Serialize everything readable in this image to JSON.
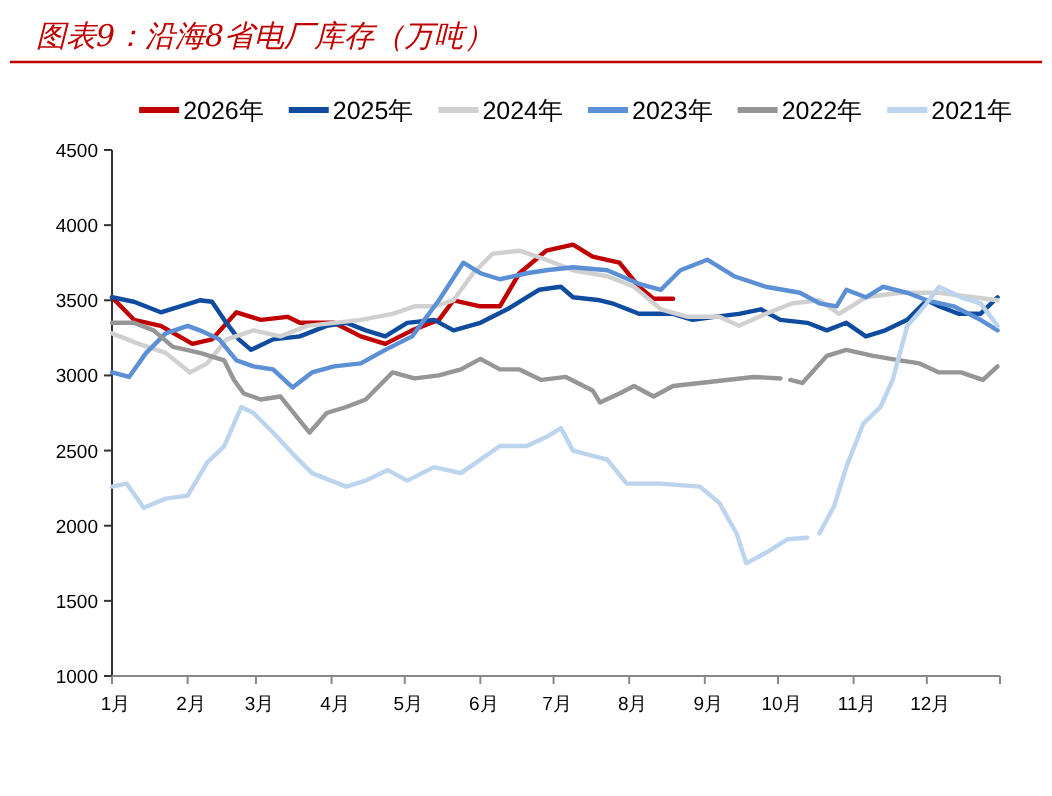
{
  "chart_data": {
    "type": "line",
    "title": "图表9：沿海8省电厂库存（万吨）",
    "legend": "top",
    "xlim": [
      "--01-01",
      "--12-31"
    ],
    "xticks": [
      {
        "value": "--01-01",
        "label": "1月"
      },
      {
        "value": "--02-01",
        "label": "2月"
      },
      {
        "value": "--03-01",
        "label": "3月"
      },
      {
        "value": "--04-01",
        "label": "4月"
      },
      {
        "value": "--05-01",
        "label": "5月"
      },
      {
        "value": "--06-01",
        "label": "6月"
      },
      {
        "value": "--07-01",
        "label": "7月"
      },
      {
        "value": "--08-01",
        "label": "8月"
      },
      {
        "value": "--09-01",
        "label": "9月"
      },
      {
        "value": "--10-01",
        "label": "10月"
      },
      {
        "value": "--11-01",
        "label": "11月"
      },
      {
        "value": "--12-01",
        "label": "12月"
      },
      {
        "value": "--12-31",
        "label": null
      }
    ],
    "ylim": [
      1000,
      4500
    ],
    "yticks": [
      1000,
      1500,
      2000,
      2500,
      3000,
      3500,
      4000,
      4500
    ],
    "series": [
      {
        "name": "2026年",
        "color": "#c00000",
        "x": [
          "--01-01",
          "--01-10",
          "--01-21",
          "--02-03",
          "--02-11",
          "--02-21",
          "--03-03",
          "--03-14",
          "--03-19",
          "--04-02",
          "--04-13",
          "--04-23",
          "--05-04",
          "--05-15",
          "--05-21",
          "--06-01",
          "--06-09",
          "--06-17",
          "--06-28",
          "--07-09",
          "--07-17",
          "--07-28",
          "--08-05",
          "--08-11",
          "--08-19"
        ],
        "values": [
          3520,
          3370,
          3330,
          3210,
          3240,
          3420,
          3370,
          3390,
          3350,
          3350,
          3260,
          3210,
          3300,
          3370,
          3500,
          3460,
          3460,
          3680,
          3830,
          3870,
          3790,
          3750,
          3590,
          3510,
          3510
        ]
      },
      {
        "name": "2025年",
        "color": "#0f4c9f",
        "x": [
          "--01-01",
          "--01-10",
          "--01-21",
          "--01-29",
          "--02-06",
          "--02-11",
          "--02-16",
          "--02-22",
          "--02-27",
          "--03-08",
          "--03-19",
          "--03-30",
          "--04-07",
          "--04-15",
          "--04-23",
          "--05-02",
          "--05-13",
          "--05-21",
          "--06-01",
          "--06-12",
          "--06-25",
          "--07-04",
          "--07-09",
          "--07-20",
          "--07-25",
          "--08-05",
          "--08-19",
          "--08-27",
          "--09-05",
          "--09-15",
          "--09-24",
          "--10-02",
          "--10-13",
          "--10-21",
          "--10-29",
          "--11-06",
          "--11-14",
          "--11-23",
          "--12-01",
          "--12-06",
          "--12-14",
          "--12-23",
          "--12-30"
        ],
        "values": [
          3520,
          3490,
          3420,
          3460,
          3500,
          3490,
          3370,
          3240,
          3170,
          3240,
          3260,
          3330,
          3350,
          3300,
          3260,
          3350,
          3370,
          3300,
          3350,
          3440,
          3570,
          3590,
          3520,
          3500,
          3480,
          3410,
          3410,
          3370,
          3390,
          3410,
          3440,
          3370,
          3350,
          3300,
          3350,
          3260,
          3300,
          3370,
          3500,
          3460,
          3410,
          3410,
          3520
        ]
      },
      {
        "name": "2024年",
        "color": "#d0d0d0",
        "x": [
          "--01-01",
          "--01-12",
          "--01-23",
          "--02-02",
          "--02-09",
          "--02-17",
          "--02-28",
          "--03-11",
          "--03-22",
          "--04-02",
          "--04-13",
          "--04-26",
          "--05-05",
          "--05-13",
          "--05-21",
          "--05-29",
          "--06-06",
          "--06-17",
          "--06-28",
          "--07-09",
          "--07-23",
          "--08-03",
          "--08-14",
          "--08-25",
          "--09-07",
          "--09-15",
          "--09-26",
          "--10-07",
          "--10-18",
          "--10-26",
          "--11-06",
          "--11-20",
          "--12-06",
          "--12-20",
          "--12-30"
        ],
        "values": [
          3280,
          3210,
          3150,
          3020,
          3080,
          3240,
          3300,
          3260,
          3330,
          3350,
          3370,
          3410,
          3460,
          3460,
          3500,
          3680,
          3810,
          3830,
          3770,
          3700,
          3660,
          3590,
          3440,
          3390,
          3390,
          3330,
          3410,
          3480,
          3500,
          3410,
          3520,
          3550,
          3550,
          3520,
          3500
        ]
      },
      {
        "name": "2023年",
        "color": "#5b8fd6",
        "x": [
          "--01-01",
          "--01-08",
          "--01-15",
          "--01-23",
          "--02-01",
          "--02-06",
          "--02-14",
          "--02-21",
          "--02-28",
          "--03-08",
          "--03-16",
          "--03-24",
          "--04-02",
          "--04-13",
          "--04-23",
          "--05-04",
          "--05-15",
          "--05-25",
          "--06-01",
          "--06-09",
          "--06-20",
          "--06-28",
          "--07-09",
          "--07-23",
          "--08-05",
          "--08-14",
          "--08-22",
          "--09-02",
          "--09-13",
          "--09-26",
          "--10-10",
          "--10-18",
          "--10-25",
          "--10-29",
          "--11-06",
          "--11-13",
          "--11-23",
          "--12-01",
          "--12-12",
          "--12-23",
          "--12-30"
        ],
        "values": [
          3020,
          2990,
          3150,
          3280,
          3330,
          3300,
          3240,
          3100,
          3060,
          3040,
          2920,
          3020,
          3060,
          3080,
          3170,
          3260,
          3500,
          3750,
          3680,
          3640,
          3680,
          3700,
          3720,
          3700,
          3610,
          3570,
          3700,
          3770,
          3660,
          3590,
          3550,
          3480,
          3460,
          3570,
          3520,
          3590,
          3550,
          3500,
          3460,
          3370,
          3300
        ]
      },
      {
        "name": "2022年",
        "color": "#969696",
        "x": [
          "--01-01",
          "--01-10",
          "--01-18",
          "--01-26",
          "--02-06",
          "--02-16",
          "--02-20",
          "--02-24",
          "--03-03",
          "--03-11",
          "--03-19",
          "--03-23",
          "--03-30",
          "--04-07",
          "--04-15",
          "--04-26",
          "--05-05",
          "--05-15",
          "--05-24",
          "--06-01",
          "--06-09",
          "--06-17",
          "--06-26",
          "--07-06",
          "--07-17",
          "--07-20",
          "--07-28",
          "--08-03",
          "--08-11",
          "--08-19",
          "--08-30",
          "--09-10",
          "--09-21",
          "--10-02"
        ],
        "values": [
          3350,
          3350,
          3300,
          3190,
          3150,
          3100,
          2970,
          2880,
          2840,
          2860,
          2700,
          2620,
          2750,
          2790,
          2840,
          3020,
          2980,
          3000,
          3040,
          3110,
          3040,
          3040,
          2970,
          2990,
          2900,
          2820,
          2880,
          2930,
          2860,
          2930,
          2950,
          2970,
          2990,
          2980
        ]
      },
      {
        "color": "#969696",
        "x": [
          "--10-06",
          "--10-11",
          "--10-21",
          "--10-29",
          "--11-09",
          "--11-20",
          "--11-28",
          "--12-06",
          "--12-15",
          "--12-24",
          "--12-30"
        ],
        "values": [
          2970,
          2950,
          3130,
          3170,
          3130,
          3100,
          3080,
          3020,
          3020,
          2970,
          3060
        ]
      },
      {
        "name": "2021年",
        "color": "#bdd4ee",
        "x": [
          "--01-01",
          "--01-07",
          "--01-14",
          "--01-23",
          "--02-01",
          "--02-09",
          "--02-16",
          "--02-23",
          "--02-28",
          "--03-08",
          "--03-16",
          "--03-24",
          "--04-07",
          "--04-15",
          "--04-24",
          "--05-02",
          "--05-13",
          "--05-24",
          "--06-01",
          "--06-09",
          "--06-20",
          "--06-28",
          "--07-04",
          "--07-09",
          "--07-23",
          "--07-31",
          "--08-14",
          "--08-30",
          "--09-07",
          "--09-14",
          "--09-18",
          "--09-26",
          "--10-05",
          "--10-13"
        ],
        "values": [
          2260,
          2280,
          2120,
          2180,
          2200,
          2420,
          2530,
          2790,
          2750,
          2620,
          2480,
          2350,
          2260,
          2300,
          2370,
          2300,
          2390,
          2350,
          2440,
          2530,
          2530,
          2590,
          2650,
          2500,
          2440,
          2280,
          2280,
          2260,
          2150,
          1950,
          1750,
          1820,
          1910,
          1920
        ]
      },
      {
        "color": "#bdd4ee",
        "x": [
          "--10-18",
          "--10-24",
          "--10-29",
          "--11-05",
          "--11-12",
          "--11-17",
          "--11-23",
          "--11-30",
          "--12-06",
          "--12-15",
          "--12-23",
          "--12-30"
        ],
        "values": [
          1950,
          2130,
          2390,
          2680,
          2790,
          2970,
          3330,
          3460,
          3590,
          3520,
          3480,
          3330
        ]
      }
    ]
  }
}
